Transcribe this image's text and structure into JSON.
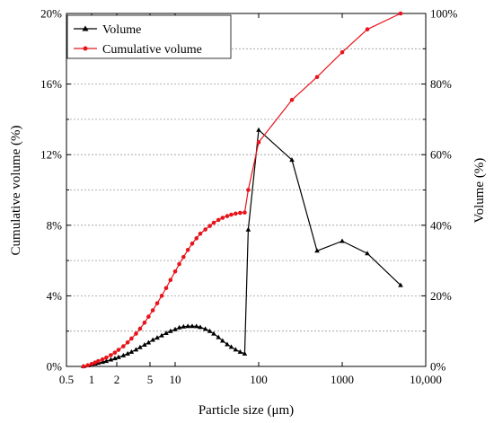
{
  "chart_data": {
    "type": "line",
    "xlabel": "Particle size (μm)",
    "ylabel_left": "Cumulative volume (%)",
    "ylabel_right": "Volume (%)",
    "x_scale": "log",
    "xlim": [
      0.5,
      10000
    ],
    "ylim_left": [
      0,
      20
    ],
    "ylim_right": [
      0,
      100
    ],
    "x_ticks": [
      {
        "value": 0.5,
        "label": "0.5"
      },
      {
        "value": 1,
        "label": "1"
      },
      {
        "value": 2,
        "label": "2"
      },
      {
        "value": 5,
        "label": "5"
      },
      {
        "value": 10,
        "label": "10"
      },
      {
        "value": 100,
        "label": "100"
      },
      {
        "value": 1000,
        "label": "1000"
      },
      {
        "value": 10000,
        "label": "10,000"
      }
    ],
    "y_ticks_left": [
      {
        "value": 0,
        "label": "0%"
      },
      {
        "value": 4,
        "label": "4%"
      },
      {
        "value": 8,
        "label": "8%"
      },
      {
        "value": 12,
        "label": "12%"
      },
      {
        "value": 16,
        "label": "16%"
      },
      {
        "value": 20,
        "label": "20%"
      }
    ],
    "y_ticks_right": [
      {
        "value": 0,
        "label": "0%"
      },
      {
        "value": 20,
        "label": "20%"
      },
      {
        "value": 40,
        "label": "40%"
      },
      {
        "value": 60,
        "label": "60%"
      },
      {
        "value": 80,
        "label": "80%"
      },
      {
        "value": 100,
        "label": "100%"
      }
    ],
    "grid": "horizontal dotted",
    "legend_position": "top-left",
    "series": [
      {
        "name": "Volume",
        "axis": "left",
        "color": "#000000",
        "marker": "triangle",
        "points": [
          [
            0.8,
            0.0
          ],
          [
            0.9,
            0.05
          ],
          [
            1.0,
            0.1
          ],
          [
            1.1,
            0.15
          ],
          [
            1.2,
            0.2
          ],
          [
            1.35,
            0.25
          ],
          [
            1.5,
            0.3
          ],
          [
            1.7,
            0.38
          ],
          [
            1.9,
            0.45
          ],
          [
            2.1,
            0.52
          ],
          [
            2.4,
            0.62
          ],
          [
            2.7,
            0.72
          ],
          [
            3.0,
            0.82
          ],
          [
            3.4,
            0.95
          ],
          [
            3.8,
            1.08
          ],
          [
            4.3,
            1.22
          ],
          [
            4.8,
            1.35
          ],
          [
            5.4,
            1.5
          ],
          [
            6.1,
            1.62
          ],
          [
            6.9,
            1.75
          ],
          [
            7.8,
            1.88
          ],
          [
            8.8,
            2.0
          ],
          [
            10,
            2.1
          ],
          [
            11.2,
            2.2
          ],
          [
            12.6,
            2.25
          ],
          [
            14.2,
            2.28
          ],
          [
            16,
            2.28
          ],
          [
            18,
            2.27
          ],
          [
            20,
            2.22
          ],
          [
            23,
            2.12
          ],
          [
            26,
            2.0
          ],
          [
            29,
            1.85
          ],
          [
            33,
            1.65
          ],
          [
            37,
            1.45
          ],
          [
            42,
            1.25
          ],
          [
            47,
            1.1
          ],
          [
            53,
            0.95
          ],
          [
            60,
            0.82
          ],
          [
            68,
            0.72
          ],
          [
            75,
            7.75
          ],
          [
            100,
            13.4
          ],
          [
            250,
            11.7
          ],
          [
            500,
            6.55
          ],
          [
            1000,
            7.1
          ],
          [
            2000,
            6.4
          ],
          [
            5000,
            4.6
          ]
        ]
      },
      {
        "name": "Cumulative volume",
        "axis": "right",
        "color": "#e8141b",
        "marker": "circle",
        "points": [
          [
            0.8,
            0.0
          ],
          [
            0.9,
            0.3
          ],
          [
            1.0,
            0.7
          ],
          [
            1.1,
            1.1
          ],
          [
            1.2,
            1.5
          ],
          [
            1.35,
            2.0
          ],
          [
            1.5,
            2.5
          ],
          [
            1.7,
            3.2
          ],
          [
            1.9,
            3.9
          ],
          [
            2.1,
            4.7
          ],
          [
            2.4,
            5.7
          ],
          [
            2.7,
            6.8
          ],
          [
            3.0,
            7.9
          ],
          [
            3.4,
            9.3
          ],
          [
            3.8,
            10.7
          ],
          [
            4.3,
            12.4
          ],
          [
            4.8,
            14.1
          ],
          [
            5.4,
            15.9
          ],
          [
            6.1,
            17.9
          ],
          [
            6.9,
            20.0
          ],
          [
            7.8,
            22.2
          ],
          [
            8.8,
            24.5
          ],
          [
            10,
            26.9
          ],
          [
            11.2,
            29.0
          ],
          [
            12.6,
            31.0
          ],
          [
            14.2,
            33.0
          ],
          [
            16,
            34.8
          ],
          [
            18,
            36.3
          ],
          [
            20,
            37.6
          ],
          [
            23,
            38.8
          ],
          [
            26,
            39.8
          ],
          [
            29,
            40.7
          ],
          [
            33,
            41.5
          ],
          [
            37,
            42.1
          ],
          [
            42,
            42.6
          ],
          [
            47,
            43.0
          ],
          [
            53,
            43.3
          ],
          [
            60,
            43.5
          ],
          [
            68,
            43.6
          ],
          [
            75,
            50.0
          ],
          [
            100,
            63.5
          ],
          [
            250,
            75.5
          ],
          [
            500,
            82.0
          ],
          [
            1000,
            89.0
          ],
          [
            2000,
            95.5
          ],
          [
            5000,
            100.0
          ]
        ]
      }
    ]
  }
}
